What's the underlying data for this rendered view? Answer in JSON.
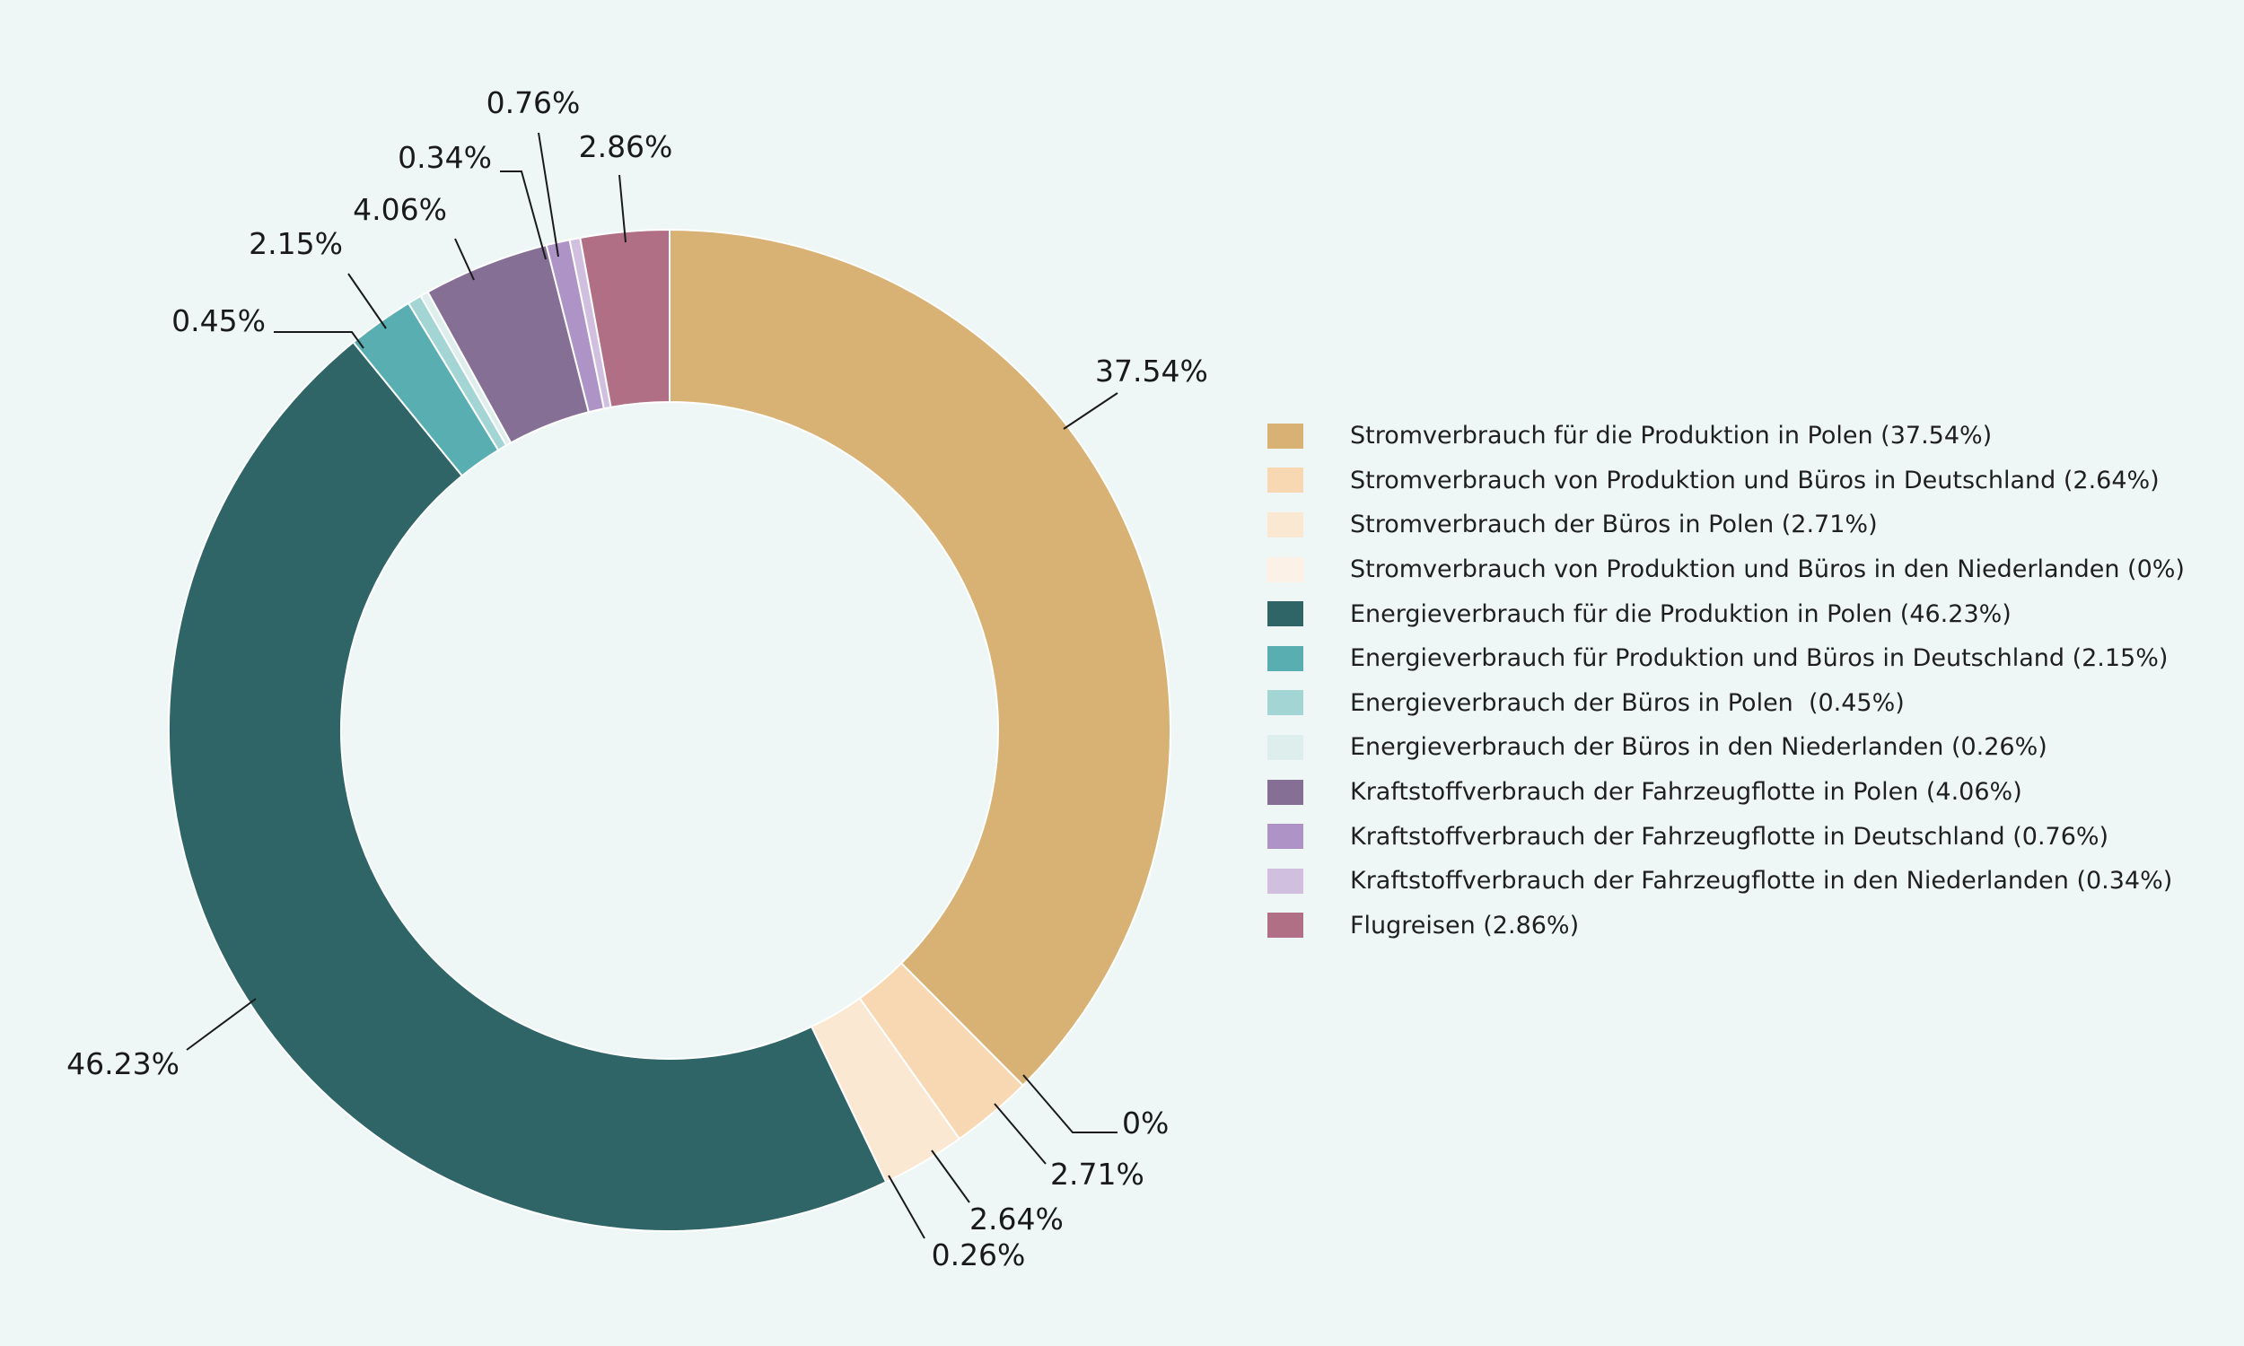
{
  "chart_data": {
    "type": "pie",
    "variant": "donut",
    "legend_position": "right",
    "start_angle_deg": 0,
    "direction": "clockwise",
    "slices": [
      {
        "label": "Stromverbrauch für die Produktion in Polen (37.54%)",
        "value": 37.54,
        "data_label": "37.54%",
        "color": "#d8b275"
      },
      {
        "label": "Stromverbrauch von Produktion und Büros in Deutschland (2.64%)",
        "value": 2.64,
        "data_label": "2.64%",
        "color": "#f8d8b2"
      },
      {
        "label": "Stromverbrauch der Büros in Polen (2.71%)",
        "value": 2.71,
        "data_label": "2.71%",
        "color": "#fbe8d3"
      },
      {
        "label": "Stromverbrauch von Produktion und Büros in den Niederlanden (0%)",
        "value": 0,
        "data_label": "0%",
        "color": "#fcf1e6"
      },
      {
        "label": "Energieverbrauch für die Produktion in Polen (46.23%)",
        "value": 46.23,
        "data_label": "46.23%",
        "color": "#306567"
      },
      {
        "label": "Energieverbrauch für Produktion und Büros in Deutschland (2.15%)",
        "value": 2.15,
        "data_label": "2.15%",
        "color": "#58aeb0"
      },
      {
        "label": "Energieverbrauch der Büros in Polen  (0.45%)",
        "value": 0.45,
        "data_label": "0.45%",
        "color": "#a3d5d5"
      },
      {
        "label": "Energieverbrauch der Büros in den Niederlanden (0.26%)",
        "value": 0.26,
        "data_label": "0.26%",
        "color": "#ddeeed"
      },
      {
        "label": "Kraftstoffverbrauch der Fahrzeugflotte in Polen (4.06%)",
        "value": 4.06,
        "data_label": "4.06%",
        "color": "#866f95"
      },
      {
        "label": "Kraftstoffverbrauch der Fahrzeugflotte in Deutschland (0.76%)",
        "value": 0.76,
        "data_label": "0.76%",
        "color": "#ae93c7"
      },
      {
        "label": "Kraftstoffverbrauch der Fahrzeugflotte in den Niederlanden (0.34%)",
        "value": 0.34,
        "data_label": "0.34%",
        "color": "#d1bfe0"
      },
      {
        "label": "Flugreisen (2.86%)",
        "value": 2.86,
        "data_label": "2.86%",
        "color": "#b16f85"
      }
    ]
  }
}
